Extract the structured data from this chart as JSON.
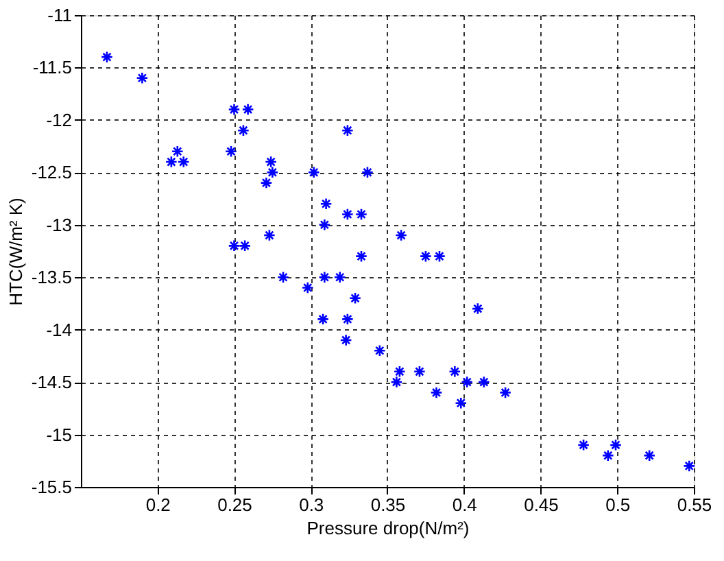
{
  "chart_data": {
    "type": "scatter",
    "xlabel": "Pressure drop(N/m²)",
    "ylabel": "HTC(W/m² K)",
    "x": [
      0.167,
      0.19,
      0.25,
      0.259,
      0.256,
      0.324,
      0.213,
      0.248,
      0.209,
      0.217,
      0.274,
      0.275,
      0.302,
      0.337,
      0.271,
      0.31,
      0.324,
      0.333,
      0.309,
      0.273,
      0.359,
      0.25,
      0.257,
      0.333,
      0.375,
      0.384,
      0.282,
      0.309,
      0.319,
      0.298,
      0.329,
      0.409,
      0.308,
      0.324,
      0.323,
      0.345,
      0.358,
      0.371,
      0.394,
      0.356,
      0.402,
      0.413,
      0.382,
      0.427,
      0.398,
      0.478,
      0.499,
      0.494,
      0.521,
      0.547
    ],
    "series": [
      {
        "color": "#0000ff",
        "values": [
          -11.4,
          -11.6,
          -11.9,
          -11.9,
          -12.1,
          -12.1,
          -12.3,
          -12.3,
          -12.4,
          -12.4,
          -12.4,
          -12.5,
          -12.5,
          -12.5,
          -12.6,
          -12.8,
          -12.9,
          -12.9,
          -13.0,
          -13.1,
          -13.1,
          -13.2,
          -13.2,
          -13.3,
          -13.3,
          -13.3,
          -13.5,
          -13.5,
          -13.5,
          -13.6,
          -13.7,
          -13.8,
          -13.9,
          -13.9,
          -14.1,
          -14.2,
          -14.4,
          -14.4,
          -14.4,
          -14.5,
          -14.5,
          -14.5,
          -14.6,
          -14.6,
          -14.7,
          -15.1,
          -15.1,
          -15.2,
          -15.2,
          -15.3
        ]
      }
    ],
    "xlim": [
      0.15,
      0.55
    ],
    "xticks": [
      0.2,
      0.25,
      0.3,
      0.35,
      0.4,
      0.45,
      0.5,
      0.55
    ],
    "ylim": [
      -15.5,
      -11
    ],
    "yticks": [
      -11,
      -11.5,
      -12,
      -12.5,
      -13,
      -13.5,
      -14,
      -14.5,
      -15,
      -15.5
    ],
    "grid": true,
    "marker": "cross"
  }
}
